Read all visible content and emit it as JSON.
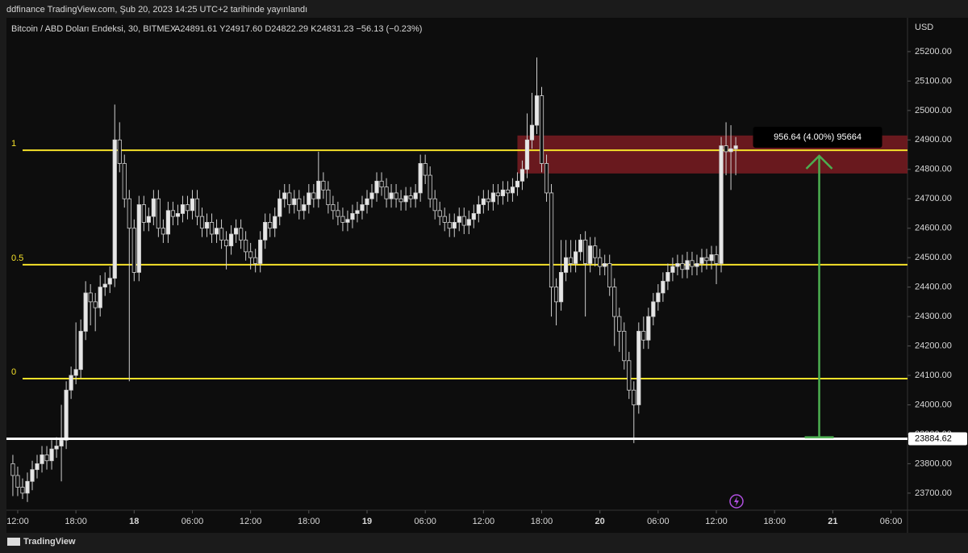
{
  "header": "ddfinance TradingView.com, Şub 20, 2023 14:25 UTC+2 tarihinde yayınlandı",
  "footer": "TradingView",
  "chart_data": {
    "type": "candlestick",
    "title": "Bitcoin / ABD Doları Endeksi, 30, BITMEX",
    "subtitle": "A24891.61 Y24917.60 D24822.29 K24831.23 −56.13 (−0.23%)",
    "y_axis_label": "USD",
    "up_color": "#e6e6e6",
    "down_color": "#111111",
    "x": [
      11.5,
      12,
      12.5,
      13,
      13.5,
      14,
      14.5,
      15,
      15.5,
      16,
      16.5,
      17,
      17.5,
      18,
      18.5,
      19,
      19.5,
      20,
      20.5,
      21,
      21.5,
      22,
      22.5,
      23,
      23.5,
      24,
      24.5,
      25,
      25.5,
      26,
      26.5,
      27,
      27.5,
      28,
      28.5,
      29,
      29.5,
      30,
      30.5,
      31,
      31.5,
      32,
      32.5,
      33,
      33.5,
      34,
      34.5,
      35,
      35.5,
      36,
      36.5,
      37,
      37.5,
      38,
      38.5,
      39,
      39.5,
      40,
      40.5,
      41,
      41.5,
      42,
      42.5,
      43,
      43.5,
      44,
      44.5,
      45,
      45.5,
      46,
      46.5,
      47,
      47.5,
      48,
      48.5,
      49,
      49.5,
      50,
      50.5,
      51,
      51.5,
      52,
      52.5,
      53,
      53.5,
      54,
      54.5,
      55,
      55.5,
      56,
      56.5,
      57,
      57.5,
      58,
      58.5,
      59,
      59.5,
      60,
      60.5,
      61,
      61.5,
      62,
      62.5,
      63,
      63.5,
      64,
      64.5,
      65,
      65.5,
      66,
      66.5,
      67,
      67.5,
      68,
      68.5,
      69,
      69.5,
      70,
      70.5,
      71,
      71.5,
      72,
      72.5,
      73,
      73.5,
      74,
      74.5,
      75,
      75.5,
      76,
      76.5,
      77,
      77.5,
      78,
      78.5,
      79,
      79.5,
      80,
      80.5,
      81,
      81.5,
      82,
      82.5,
      83,
      83.5,
      84,
      84.5,
      85,
      85.5,
      86
    ],
    "open": [
      23800,
      23760,
      23720,
      23700,
      23740,
      23780,
      23800,
      23830,
      23810,
      23850,
      23860,
      23880,
      24050,
      24100,
      24120,
      24250,
      24380,
      24350,
      24330,
      24400,
      24410,
      24430,
      24900,
      24820,
      24700,
      24600,
      24450,
      24680,
      24620,
      24640,
      24700,
      24600,
      24580,
      24660,
      24640,
      24650,
      24680,
      24660,
      24700,
      24640,
      24600,
      24620,
      24580,
      24600,
      24560,
      24540,
      24580,
      24600,
      24560,
      24520,
      24500,
      24480,
      24560,
      24620,
      24600,
      24640,
      24700,
      24720,
      24680,
      24700,
      24660,
      24680,
      24720,
      24700,
      24760,
      24730,
      24680,
      24660,
      24640,
      24620,
      24630,
      24650,
      24660,
      24680,
      24700,
      24720,
      24760,
      24740,
      24700,
      24720,
      24700,
      24690,
      24710,
      24700,
      24720,
      24820,
      24780,
      24700,
      24660,
      24640,
      24620,
      24600,
      24620,
      24640,
      24610,
      24630,
      24650,
      24680,
      24700,
      24690,
      24720,
      24710,
      24730,
      24720,
      24740,
      24760,
      24800,
      24900,
      24950,
      25050,
      24820,
      24720,
      24400,
      24350,
      24450,
      24500,
      24480,
      24520,
      24560,
      24480,
      24540,
      24500,
      24470,
      24480,
      24400,
      24300,
      24250,
      24150,
      24050,
      24000,
      24250,
      24220,
      24300,
      24350,
      24380,
      24420,
      24450,
      24470,
      24480,
      24460,
      24490,
      24470,
      24480,
      24500,
      24490,
      24510,
      24480,
      24880,
      24860,
      24870
    ],
    "high": [
      23830,
      23790,
      23750,
      23770,
      23810,
      23830,
      23860,
      23860,
      23880,
      23890,
      24000,
      24080,
      24130,
      24280,
      24290,
      24420,
      24410,
      24380,
      24440,
      24450,
      24470,
      25020,
      24960,
      24850,
      24730,
      24630,
      24710,
      24710,
      24670,
      24730,
      24730,
      24630,
      24690,
      24690,
      24680,
      24710,
      24710,
      24730,
      24730,
      24670,
      24650,
      24650,
      24630,
      24630,
      24590,
      24610,
      24630,
      24630,
      24590,
      24550,
      24530,
      24590,
      24650,
      24650,
      24670,
      24730,
      24750,
      24750,
      24730,
      24730,
      24710,
      24750,
      24750,
      24860,
      24790,
      24760,
      24710,
      24690,
      24670,
      24660,
      24680,
      24690,
      24710,
      24730,
      24750,
      24790,
      24790,
      24770,
      24750,
      24750,
      24730,
      24740,
      24740,
      24750,
      24850,
      24850,
      24810,
      24730,
      24690,
      24670,
      24650,
      24650,
      24670,
      24670,
      24660,
      24680,
      24710,
      24730,
      24730,
      24750,
      24750,
      24760,
      24760,
      24770,
      24790,
      24830,
      24990,
      25060,
      25180,
      25080,
      24850,
      24750,
      24430,
      24560,
      24560,
      24560,
      24560,
      24580,
      24590,
      24570,
      24570,
      24530,
      24510,
      24510,
      24430,
      24330,
      24280,
      24180,
      24080,
      24280,
      24300,
      24330,
      24380,
      24410,
      24450,
      24480,
      24500,
      24510,
      24510,
      24520,
      24520,
      24510,
      24530,
      24530,
      24540,
      24540,
      24910,
      24960,
      24950,
      24910
    ],
    "low": [
      23690,
      23690,
      23680,
      23670,
      23710,
      23750,
      23770,
      23780,
      23780,
      23820,
      23740,
      23850,
      24020,
      24070,
      24090,
      24220,
      24270,
      24250,
      24300,
      24370,
      24380,
      24400,
      24790,
      24670,
      24080,
      24420,
      24420,
      24590,
      24590,
      24610,
      24570,
      24550,
      24550,
      24610,
      24610,
      24620,
      24630,
      24630,
      24610,
      24570,
      24570,
      24550,
      24550,
      24530,
      24460,
      24510,
      24550,
      24530,
      24490,
      24460,
      24450,
      24450,
      24530,
      24570,
      24570,
      24610,
      24670,
      24650,
      24650,
      24630,
      24630,
      24650,
      24670,
      24670,
      24700,
      24650,
      24630,
      24610,
      24590,
      24590,
      24600,
      24620,
      24630,
      24650,
      24670,
      24690,
      24710,
      24670,
      24670,
      24670,
      24660,
      24660,
      24670,
      24670,
      24690,
      24750,
      24670,
      24630,
      24610,
      24590,
      24570,
      24570,
      24590,
      24580,
      24580,
      24600,
      24620,
      24650,
      24660,
      24660,
      24680,
      24680,
      24690,
      24690,
      24710,
      24730,
      24770,
      24870,
      24920,
      24790,
      24690,
      24300,
      24270,
      24320,
      24420,
      24450,
      24450,
      24490,
      24300,
      24450,
      24470,
      24440,
      24440,
      24370,
      24200,
      24180,
      24120,
      24020,
      23870,
      23970,
      24190,
      24190,
      24270,
      24320,
      24350,
      24390,
      24420,
      24440,
      24430,
      24430,
      24440,
      24440,
      24450,
      24460,
      24460,
      24410,
      24450,
      24780,
      24730,
      24780
    ],
    "close": [
      23760,
      23720,
      23700,
      23740,
      23780,
      23800,
      23830,
      23810,
      23850,
      23860,
      23880,
      24050,
      24100,
      24120,
      24250,
      24380,
      24350,
      24330,
      24400,
      24410,
      24430,
      24900,
      24820,
      24700,
      24600,
      24450,
      24680,
      24620,
      24640,
      24700,
      24600,
      24580,
      24660,
      24640,
      24650,
      24680,
      24660,
      24700,
      24640,
      24600,
      24620,
      24580,
      24600,
      24560,
      24540,
      24580,
      24600,
      24560,
      24520,
      24500,
      24480,
      24560,
      24620,
      24600,
      24640,
      24700,
      24720,
      24680,
      24700,
      24660,
      24680,
      24720,
      24700,
      24760,
      24730,
      24680,
      24660,
      24640,
      24620,
      24630,
      24650,
      24660,
      24680,
      24700,
      24720,
      24760,
      24740,
      24700,
      24720,
      24700,
      24690,
      24710,
      24700,
      24720,
      24820,
      24780,
      24700,
      24660,
      24640,
      24620,
      24600,
      24620,
      24640,
      24610,
      24630,
      24650,
      24680,
      24700,
      24690,
      24720,
      24710,
      24730,
      24720,
      24740,
      24760,
      24800,
      24900,
      24950,
      25050,
      24820,
      24720,
      24400,
      24350,
      24450,
      24500,
      24480,
      24520,
      24560,
      24480,
      24540,
      24500,
      24470,
      24480,
      24400,
      24300,
      24250,
      24150,
      24050,
      24000,
      24250,
      24220,
      24300,
      24350,
      24380,
      24420,
      24450,
      24470,
      24480,
      24460,
      24490,
      24470,
      24480,
      24500,
      24490,
      24510,
      24480,
      24880,
      24860,
      24870,
      24880
    ],
    "xlim": [
      10.84,
      103.7
    ],
    "xticks": [
      {
        "value": 12,
        "label": "12:00"
      },
      {
        "value": 18,
        "label": "18:00"
      },
      {
        "value": 24,
        "label": "18"
      },
      {
        "value": 30,
        "label": "06:00"
      },
      {
        "value": 36,
        "label": "12:00"
      },
      {
        "value": 42,
        "label": "18:00"
      },
      {
        "value": 48,
        "label": "19"
      },
      {
        "value": 54,
        "label": "06:00"
      },
      {
        "value": 60,
        "label": "12:00"
      },
      {
        "value": 66,
        "label": "18:00"
      },
      {
        "value": 72,
        "label": "20"
      },
      {
        "value": 78,
        "label": "06:00"
      },
      {
        "value": 84,
        "label": "12:00"
      },
      {
        "value": 90,
        "label": "18:00"
      },
      {
        "value": 96,
        "label": "21"
      },
      {
        "value": 102,
        "label": "06:00"
      }
    ],
    "ylim": [
      23642,
      25315
    ],
    "yticks": [
      {
        "value": 23700,
        "label": "23700.00"
      },
      {
        "value": 23800,
        "label": "23800.00"
      },
      {
        "value": 23900,
        "label": "23900.00"
      },
      {
        "value": 24000,
        "label": "24000.00"
      },
      {
        "value": 24100,
        "label": "24100.00"
      },
      {
        "value": 24200,
        "label": "24200.00"
      },
      {
        "value": 24300,
        "label": "24300.00"
      },
      {
        "value": 24400,
        "label": "24400.00"
      },
      {
        "value": 24500,
        "label": "24500.00"
      },
      {
        "value": 24600,
        "label": "24600.00"
      },
      {
        "value": 24700,
        "label": "24700.00"
      },
      {
        "value": 24800,
        "label": "24800.00"
      },
      {
        "value": 24900,
        "label": "24900.00"
      },
      {
        "value": 25000,
        "label": "25000.00"
      },
      {
        "value": 25100,
        "label": "25100.00"
      },
      {
        "value": 25200,
        "label": "25200.00"
      }
    ],
    "levels": [
      {
        "label": "1",
        "value": 24865
      },
      {
        "label": "0.5",
        "value": 24476
      },
      {
        "label": "0",
        "value": 24089
      }
    ],
    "level_color": "#f5e12a",
    "hline": {
      "value": 23884.62,
      "color": "#ffffff"
    },
    "zone": {
      "x_start": 63.5,
      "low": 24786,
      "high": 24915,
      "color": "#7a1c22"
    },
    "measure": {
      "x": 94.6,
      "from": 23890,
      "to": 24846,
      "label": "956.64 (4.00%) 95664",
      "color": "#4caf50"
    }
  }
}
